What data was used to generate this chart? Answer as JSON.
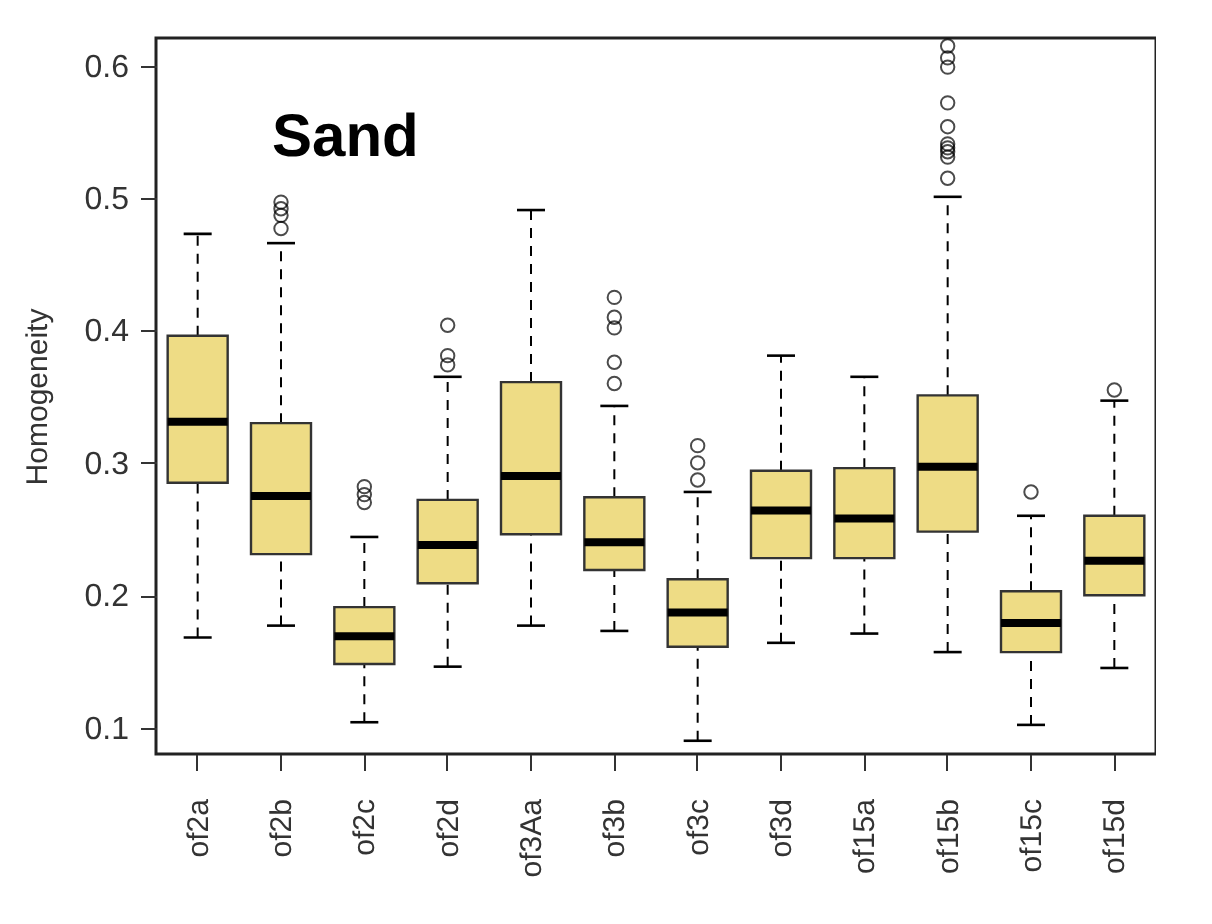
{
  "chart_data": {
    "type": "box",
    "ylabel": "Homogeneity",
    "annotations": [
      "Sand"
    ],
    "categories": [
      "of2a",
      "of2b",
      "of2c",
      "of2d",
      "of3Aa",
      "of3b",
      "of3c",
      "of3d",
      "of15a",
      "of15b",
      "of15c",
      "of15d"
    ],
    "ylim": [
      0.08,
      0.621
    ],
    "yticks": [
      0.1,
      0.2,
      0.3,
      0.4,
      0.5,
      0.6
    ],
    "grid": false,
    "series": [
      {
        "color": "#eedc85",
        "boxes": [
          {
            "low": 0.168,
            "q1": 0.285,
            "median": 0.331,
            "q3": 0.396,
            "high": 0.473
          },
          {
            "low": 0.177,
            "q1": 0.231,
            "median": 0.275,
            "q3": 0.33,
            "high": 0.466,
            "outliers": [
              0.477,
              0.487,
              0.492,
              0.497
            ]
          },
          {
            "low": 0.104,
            "q1": 0.148,
            "median": 0.169,
            "q3": 0.191,
            "high": 0.244,
            "outliers": [
              0.27,
              0.276,
              0.282
            ]
          },
          {
            "low": 0.146,
            "q1": 0.209,
            "median": 0.238,
            "q3": 0.272,
            "high": 0.365,
            "outliers": [
              0.374,
              0.381,
              0.404
            ]
          },
          {
            "low": 0.177,
            "q1": 0.246,
            "median": 0.29,
            "q3": 0.361,
            "high": 0.491
          },
          {
            "low": 0.173,
            "q1": 0.219,
            "median": 0.24,
            "q3": 0.274,
            "high": 0.343,
            "outliers": [
              0.36,
              0.376,
              0.402,
              0.41,
              0.425
            ]
          },
          {
            "low": 0.09,
            "q1": 0.161,
            "median": 0.187,
            "q3": 0.212,
            "high": 0.278,
            "outliers": [
              0.287,
              0.3,
              0.313
            ]
          },
          {
            "low": 0.164,
            "q1": 0.228,
            "median": 0.264,
            "q3": 0.294,
            "high": 0.381
          },
          {
            "low": 0.171,
            "q1": 0.228,
            "median": 0.258,
            "q3": 0.296,
            "high": 0.365
          },
          {
            "low": 0.157,
            "q1": 0.248,
            "median": 0.297,
            "q3": 0.351,
            "high": 0.501,
            "outliers": [
              0.515,
              0.531,
              0.535,
              0.538,
              0.541,
              0.554,
              0.572,
              0.599,
              0.606,
              0.615
            ]
          },
          {
            "low": 0.102,
            "q1": 0.157,
            "median": 0.179,
            "q3": 0.203,
            "high": 0.26,
            "outliers": [
              0.278
            ]
          },
          {
            "low": 0.145,
            "q1": 0.2,
            "median": 0.226,
            "q3": 0.26,
            "high": 0.347,
            "outliers": [
              0.355
            ]
          }
        ]
      }
    ]
  }
}
